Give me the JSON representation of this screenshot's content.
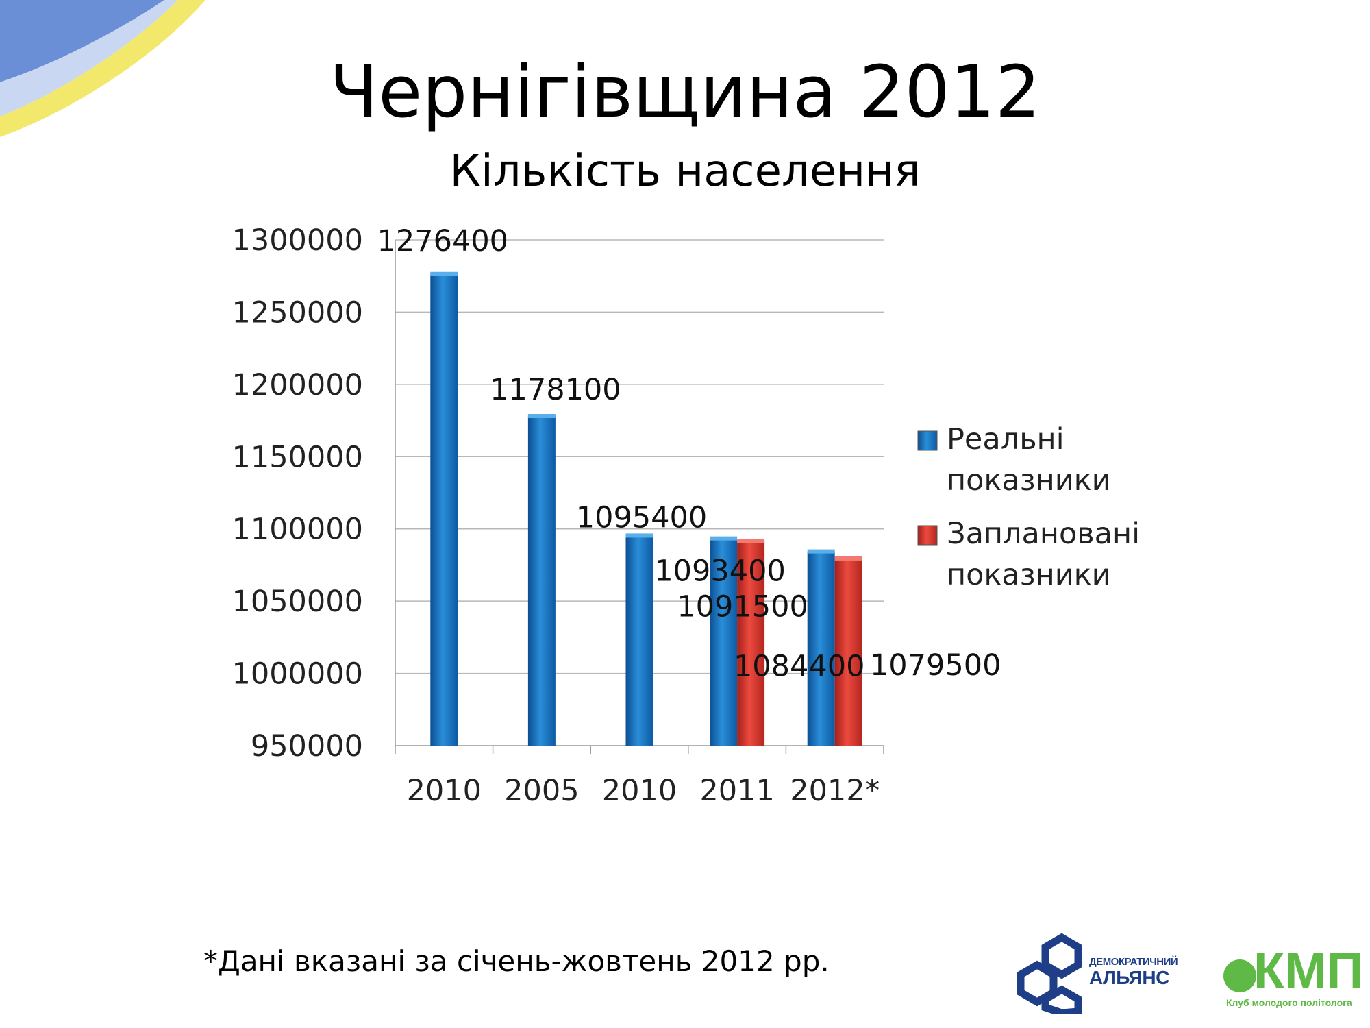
{
  "page": {
    "title": "Чернігівщина 2012",
    "subtitle": "Кількість населення",
    "footnote": "*Дані вказані за січень-жовтень 2012 рр.",
    "logos": {
      "da_line1": "ДЕМОКРАТИЧНИЙ",
      "da_line2": "АЛЬЯНС",
      "kmp_word": "КМП",
      "kmp_sub": "Клуб молодого політолога"
    },
    "colors": {
      "series_real": "#1f79c4",
      "series_planned": "#e03b32"
    }
  },
  "chart_data": {
    "type": "bar",
    "categories": [
      "2010",
      "2005",
      "2010",
      "2011",
      "2012*"
    ],
    "series": [
      {
        "name": "Реальні показники",
        "values": [
          1276400,
          1178100,
          1095400,
          1093400,
          1084400
        ]
      },
      {
        "name": "Заплановані показники",
        "values": [
          null,
          null,
          null,
          1091500,
          1079500
        ]
      }
    ],
    "data_labels": [
      "1276400",
      "1178100",
      "1095400",
      "1093400",
      "1091500",
      "1084400",
      "1079500"
    ],
    "y_ticks": [
      "950000",
      "1000000",
      "1050000",
      "1100000",
      "1150000",
      "1200000",
      "1250000",
      "1300000"
    ],
    "ylim": [
      950000,
      1300000
    ],
    "grid": true,
    "legend": {
      "position": "right",
      "entries": [
        {
          "line1": "Реальні",
          "line2": "показники"
        },
        {
          "line1": "Заплановані",
          "line2": "показники"
        }
      ]
    }
  }
}
